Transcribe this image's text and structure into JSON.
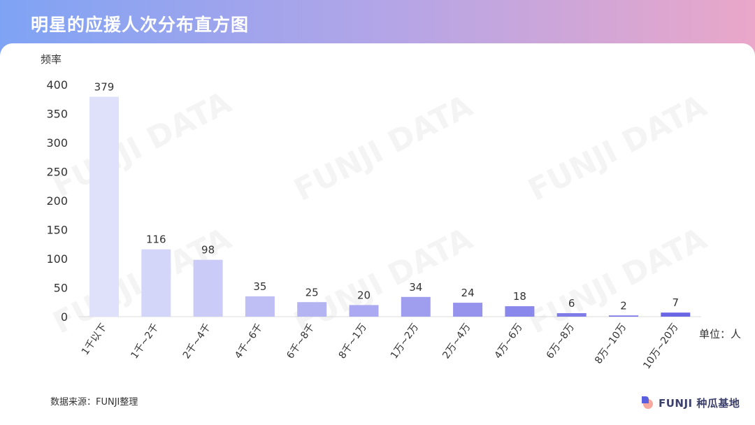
{
  "header": {
    "title": "明星的应援人次分布直方图"
  },
  "footer": {
    "source": "数据来源：FUNJI整理",
    "logo_text": "FUNJI 种瓜基地"
  },
  "watermark": "FUNJI DATA",
  "colors": {
    "bar_light": "#dfe1fb",
    "bar_dark": "#6a66e4",
    "axis": "#dcdcdc",
    "text": "#333333"
  },
  "chart_data": {
    "type": "bar",
    "title": "明星的应援人次分布直方图",
    "ylabel": "频率",
    "xlabel": "单位：人",
    "ylim": [
      0,
      400
    ],
    "yticks": [
      0,
      50,
      100,
      150,
      200,
      250,
      300,
      350,
      400
    ],
    "categories": [
      "1千以下",
      "1千~2千",
      "2千~4千",
      "4千~6千",
      "6千~8千",
      "8千~1万",
      "1万~2万",
      "2万~4万",
      "4万~6万",
      "6万~8万",
      "8万~10万",
      "10万~20万"
    ],
    "values": [
      379,
      116,
      98,
      35,
      25,
      20,
      34,
      24,
      18,
      6,
      2,
      7
    ],
    "data_labels": true,
    "grid": false
  }
}
